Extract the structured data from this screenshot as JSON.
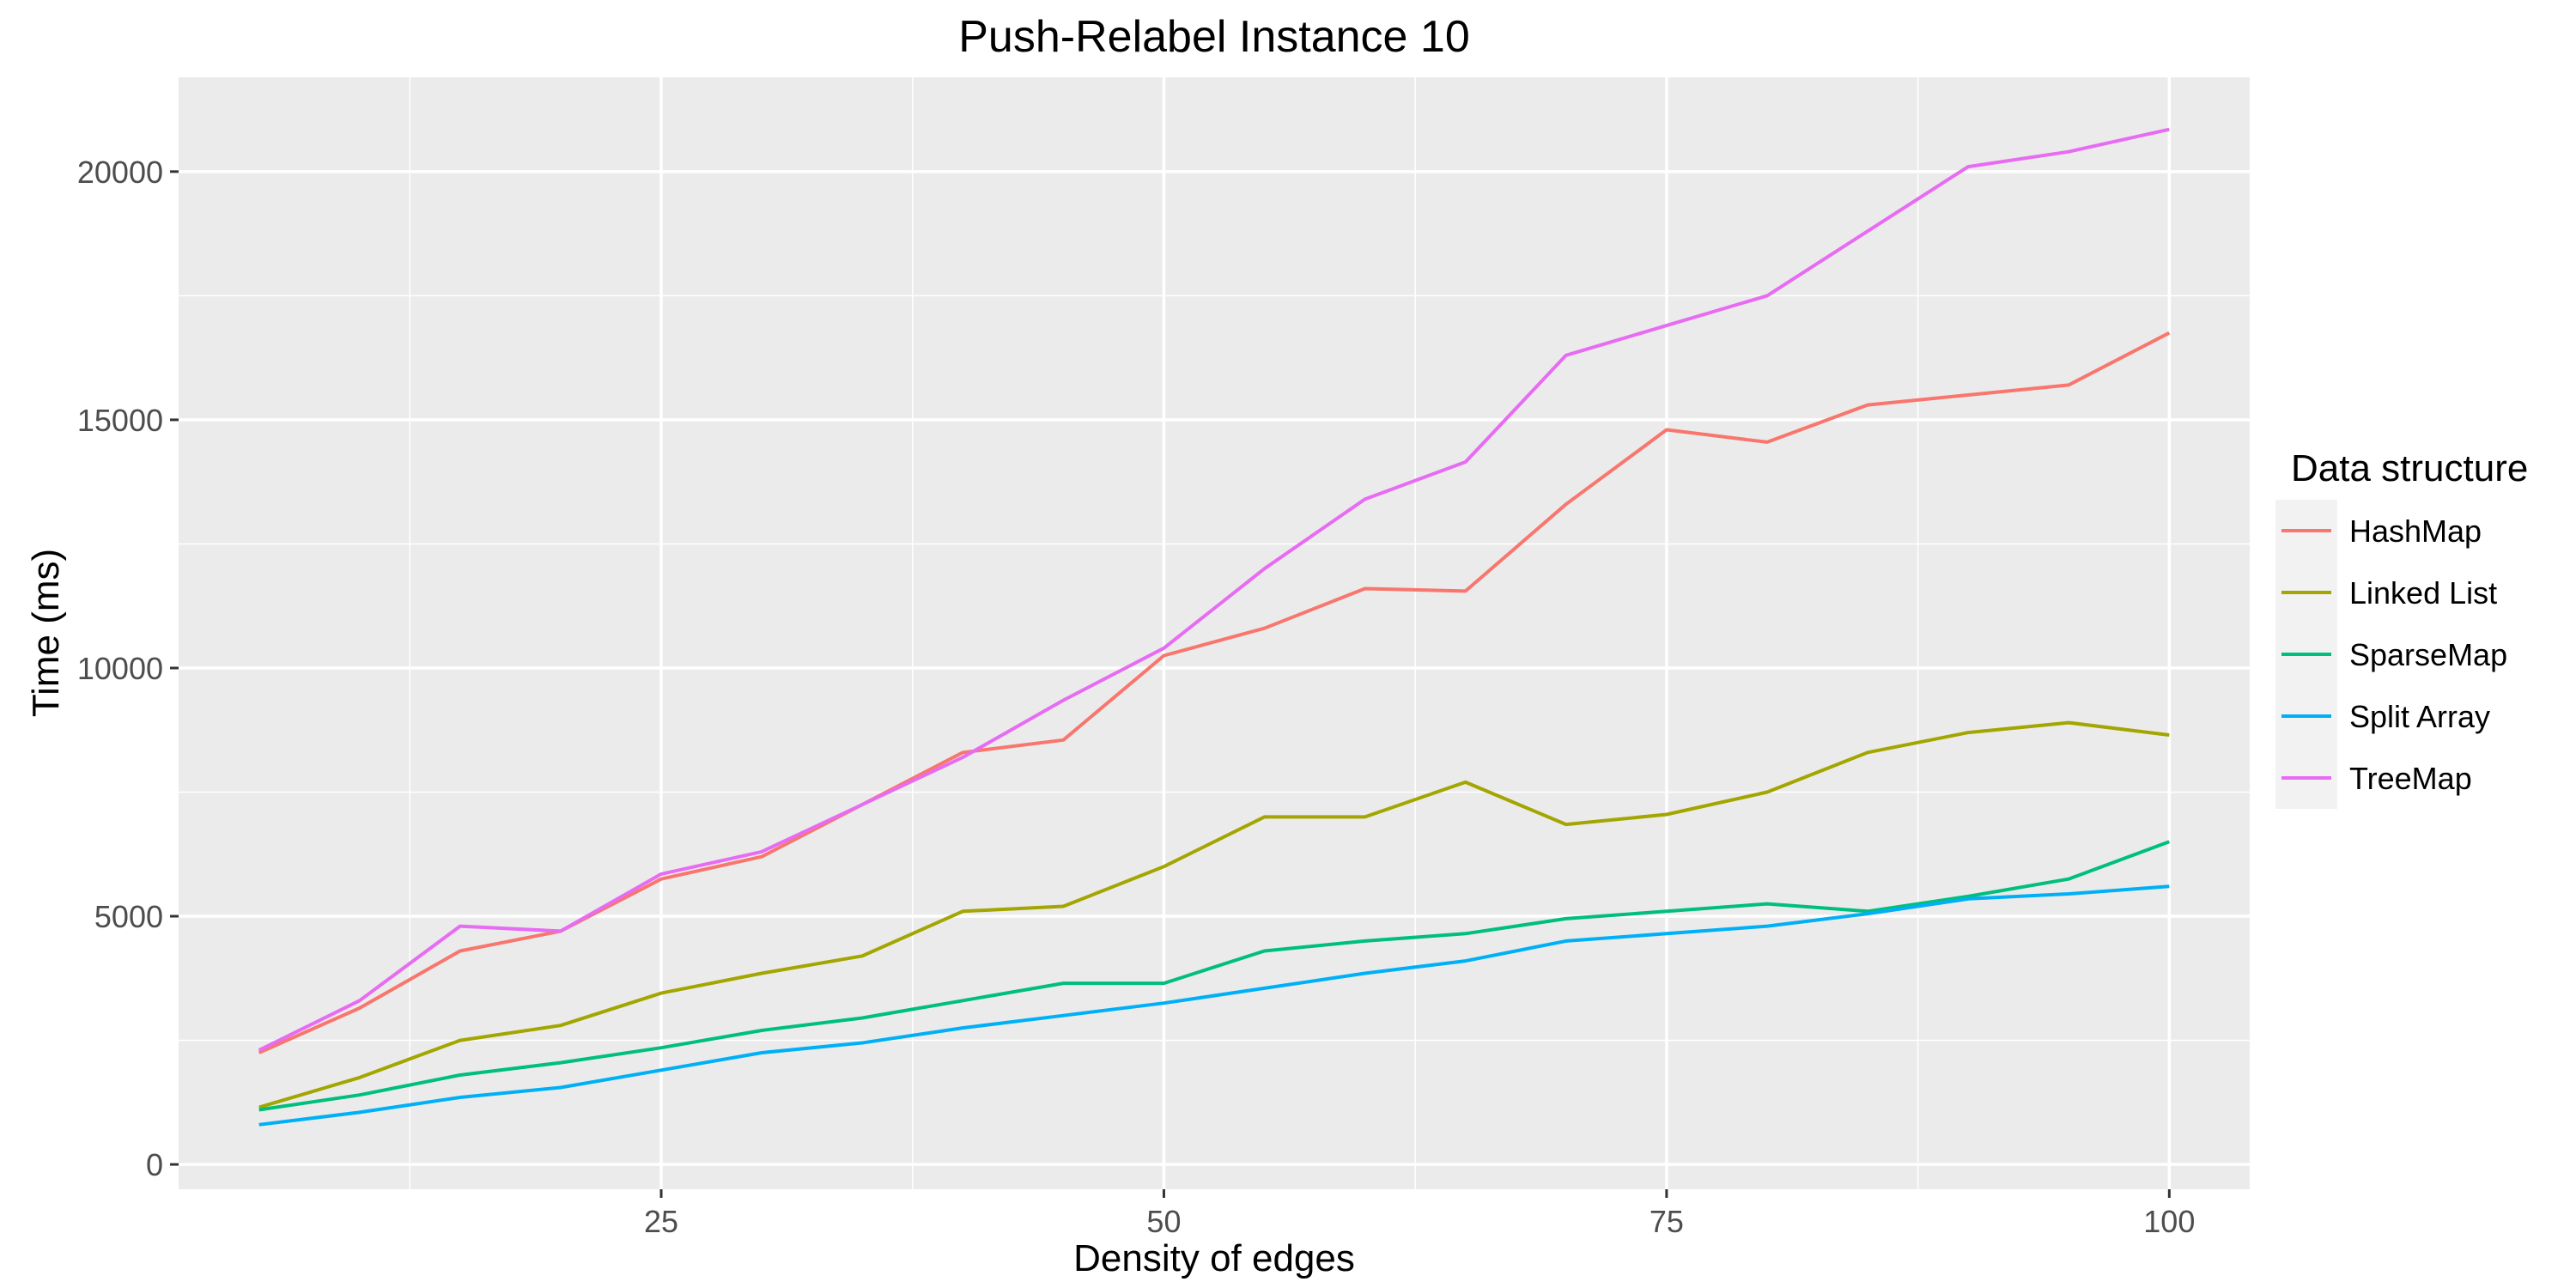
{
  "chart_data": {
    "type": "line",
    "title": "Push-Relabel Instance 10",
    "xlabel": "Density of edges",
    "ylabel": "Time (ms)",
    "xlim": [
      1,
      104
    ],
    "ylim": [
      -500,
      21900
    ],
    "x_ticks": [
      25,
      50,
      75,
      100
    ],
    "y_ticks": [
      0,
      5000,
      10000,
      15000,
      20000
    ],
    "x_tick_labels": [
      "25",
      "50",
      "75",
      "100"
    ],
    "y_tick_labels": [
      "0",
      "5000",
      "10000",
      "15000",
      "20000"
    ],
    "grid": true,
    "legend_title": "Data structure",
    "legend_position": "right",
    "x": [
      5,
      10,
      15,
      20,
      25,
      30,
      35,
      40,
      45,
      50,
      55,
      60,
      65,
      70,
      75,
      80,
      85,
      90,
      95,
      100
    ],
    "series": [
      {
        "name": "HashMap",
        "color": "#F8766D",
        "values": [
          2250,
          3150,
          4300,
          4700,
          5750,
          6200,
          7250,
          8300,
          8550,
          10250,
          10800,
          11600,
          11550,
          13300,
          14800,
          14550,
          15300,
          15500,
          15700,
          16750
        ]
      },
      {
        "name": "Linked List",
        "color": "#A3A500",
        "values": [
          1150,
          1750,
          2500,
          2800,
          3450,
          3850,
          4200,
          5100,
          5200,
          6000,
          7000,
          7000,
          7700,
          6850,
          7050,
          7500,
          8300,
          8700,
          8900,
          8650
        ]
      },
      {
        "name": "SparseMap",
        "color": "#00BF7D",
        "values": [
          1100,
          1400,
          1800,
          2050,
          2350,
          2700,
          2950,
          3300,
          3650,
          3650,
          4300,
          4500,
          4650,
          4950,
          5100,
          5250,
          5100,
          5400,
          5750,
          6500
        ]
      },
      {
        "name": "Split Array",
        "color": "#00B0F6",
        "values": [
          800,
          1050,
          1350,
          1550,
          1900,
          2250,
          2450,
          2750,
          3000,
          3250,
          3550,
          3850,
          4100,
          4500,
          4650,
          4800,
          5050,
          5350,
          5450,
          5600
        ]
      },
      {
        "name": "TreeMap",
        "color": "#E76BF3",
        "values": [
          2300,
          3300,
          4800,
          4700,
          5850,
          6300,
          7250,
          8200,
          9350,
          10400,
          12000,
          13400,
          14150,
          16300,
          16900,
          17500,
          18800,
          20100,
          20400,
          20850
        ]
      }
    ]
  }
}
